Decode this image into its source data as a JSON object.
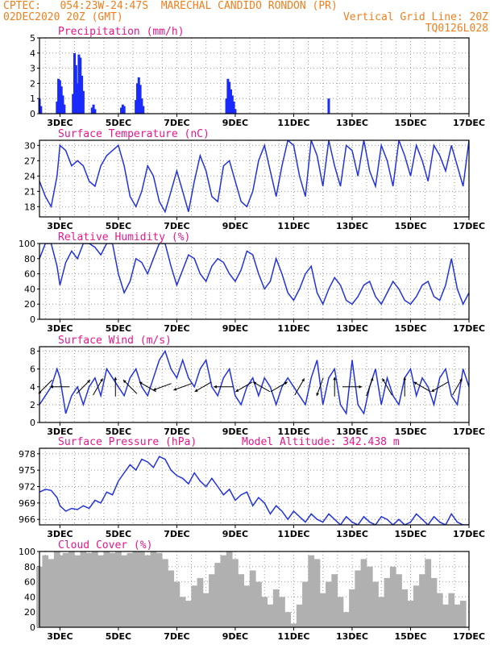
{
  "header": {
    "source": "CPTEC:",
    "coords": "054:23W-24:47S",
    "station": "MARECHAL CANDIDO RONDON (PR)",
    "date": "02DEC2020 20Z (GMT)",
    "grid_note": "Vertical Grid Line: 20Z",
    "code": "TQ0126L028"
  },
  "colors": {
    "header": "#f07f1e",
    "title": "#e8178a",
    "line": "#2233dd",
    "bar": "#1a2bff",
    "cloud": "#b0b0b0",
    "grid": "#9a9a9a"
  },
  "x_axis": {
    "ticks": [
      {
        "label": "3DEC",
        "day": 3
      },
      {
        "label": "5DEC",
        "day": 5
      },
      {
        "label": "7DEC",
        "day": 7
      },
      {
        "label": "9DEC",
        "day": 9
      },
      {
        "label": "11DEC",
        "day": 11
      },
      {
        "label": "13DEC",
        "day": 13
      },
      {
        "label": "15DEC",
        "day": 15
      },
      {
        "label": "17DEC",
        "day": 17
      }
    ],
    "range_days": [
      2.3,
      17.0
    ]
  },
  "chart_data": [
    {
      "type": "bar",
      "title": "Precipitation (mm/h)",
      "ylim": [
        0,
        5
      ],
      "yticks": [
        0,
        1,
        2,
        3,
        4,
        5
      ],
      "x_days": [
        2.3,
        2.35,
        2.9,
        2.95,
        3.0,
        3.05,
        3.1,
        3.15,
        3.45,
        3.5,
        3.55,
        3.6,
        3.65,
        3.7,
        3.75,
        3.8,
        4.1,
        4.15,
        4.2,
        5.1,
        5.15,
        5.2,
        5.6,
        5.65,
        5.7,
        5.75,
        5.8,
        5.85,
        8.7,
        8.75,
        8.8,
        8.85,
        8.9,
        8.95,
        9.0,
        12.2
      ],
      "values": [
        1.0,
        0.5,
        0.8,
        2.3,
        2.2,
        1.8,
        1.2,
        0.6,
        1.3,
        4.0,
        3.2,
        2.0,
        3.9,
        3.7,
        2.5,
        1.5,
        0.4,
        0.6,
        0.3,
        0.4,
        0.6,
        0.5,
        0.9,
        2.0,
        2.4,
        1.9,
        1.0,
        0.5,
        1.0,
        2.3,
        2.1,
        1.6,
        1.2,
        0.8,
        0.3,
        1.0
      ]
    },
    {
      "type": "line",
      "title": "Surface Temperature (nC)",
      "ylim": [
        16,
        31
      ],
      "yticks": [
        18,
        21,
        24,
        27,
        30
      ],
      "x": [
        2.3,
        2.5,
        2.7,
        2.9,
        3.0,
        3.2,
        3.4,
        3.6,
        3.8,
        4.0,
        4.2,
        4.4,
        4.6,
        4.8,
        5.0,
        5.2,
        5.4,
        5.6,
        5.8,
        6.0,
        6.2,
        6.4,
        6.6,
        6.8,
        7.0,
        7.2,
        7.4,
        7.6,
        7.8,
        8.0,
        8.2,
        8.4,
        8.6,
        8.8,
        9.0,
        9.2,
        9.4,
        9.6,
        9.8,
        10.0,
        10.2,
        10.4,
        10.6,
        10.8,
        11.0,
        11.2,
        11.4,
        11.6,
        11.8,
        12.0,
        12.2,
        12.4,
        12.6,
        12.8,
        13.0,
        13.2,
        13.4,
        13.6,
        13.8,
        14.0,
        14.2,
        14.4,
        14.6,
        14.8,
        15.0,
        15.2,
        15.4,
        15.6,
        15.8,
        16.0,
        16.2,
        16.4,
        16.6,
        16.8,
        17.0
      ],
      "values": [
        23,
        20,
        18,
        24,
        30,
        29,
        26,
        27,
        26,
        23,
        22,
        26,
        28,
        29,
        30,
        26,
        20,
        18,
        21,
        26,
        24,
        19,
        17,
        21,
        25,
        21,
        17,
        23,
        28,
        25,
        20,
        19,
        26,
        27,
        23,
        19,
        18,
        21,
        27,
        30,
        25,
        20,
        26,
        31,
        30,
        24,
        20,
        31,
        28,
        22,
        31,
        26,
        22,
        30,
        29,
        24,
        31,
        25,
        22,
        30,
        27,
        22,
        31,
        28,
        24,
        30,
        27,
        23,
        30,
        28,
        25,
        30,
        26,
        22,
        31
      ]
    },
    {
      "type": "line",
      "title": "Relative Humidity (%)",
      "ylim": [
        0,
        100
      ],
      "yticks": [
        0,
        20,
        40,
        60,
        80,
        100
      ],
      "x": [
        2.3,
        2.5,
        2.7,
        2.9,
        3.0,
        3.2,
        3.4,
        3.6,
        3.8,
        4.0,
        4.2,
        4.4,
        4.6,
        4.8,
        5.0,
        5.2,
        5.4,
        5.6,
        5.8,
        6.0,
        6.2,
        6.4,
        6.6,
        6.8,
        7.0,
        7.2,
        7.4,
        7.6,
        7.8,
        8.0,
        8.2,
        8.4,
        8.6,
        8.8,
        9.0,
        9.2,
        9.4,
        9.6,
        9.8,
        10.0,
        10.2,
        10.4,
        10.6,
        10.8,
        11.0,
        11.2,
        11.4,
        11.6,
        11.8,
        12.0,
        12.2,
        12.4,
        12.6,
        12.8,
        13.0,
        13.2,
        13.4,
        13.6,
        13.8,
        14.0,
        14.2,
        14.4,
        14.6,
        14.8,
        15.0,
        15.2,
        15.4,
        15.6,
        15.8,
        16.0,
        16.2,
        16.4,
        16.6,
        16.8,
        17.0
      ],
      "values": [
        80,
        100,
        100,
        70,
        45,
        75,
        90,
        80,
        100,
        100,
        95,
        85,
        100,
        100,
        60,
        35,
        50,
        80,
        75,
        60,
        80,
        100,
        100,
        70,
        45,
        65,
        85,
        80,
        60,
        50,
        70,
        80,
        75,
        60,
        50,
        65,
        90,
        85,
        60,
        40,
        50,
        80,
        60,
        35,
        25,
        40,
        60,
        70,
        35,
        20,
        40,
        55,
        45,
        25,
        20,
        30,
        45,
        50,
        30,
        20,
        35,
        50,
        40,
        25,
        20,
        30,
        45,
        50,
        30,
        25,
        45,
        80,
        40,
        20,
        35
      ]
    },
    {
      "type": "line",
      "title": "Surface Wind (m/s)",
      "ylim": [
        0,
        8.5
      ],
      "yticks": [
        0,
        2,
        4,
        6,
        8
      ],
      "x": [
        2.3,
        2.5,
        2.7,
        2.9,
        3.0,
        3.2,
        3.4,
        3.6,
        3.8,
        4.0,
        4.2,
        4.4,
        4.6,
        4.8,
        5.0,
        5.2,
        5.4,
        5.6,
        5.8,
        6.0,
        6.2,
        6.4,
        6.6,
        6.8,
        7.0,
        7.2,
        7.4,
        7.6,
        7.8,
        8.0,
        8.2,
        8.4,
        8.6,
        8.8,
        9.0,
        9.2,
        9.4,
        9.6,
        9.8,
        10.0,
        10.2,
        10.4,
        10.6,
        10.8,
        11.0,
        11.2,
        11.4,
        11.6,
        11.8,
        12.0,
        12.2,
        12.4,
        12.6,
        12.8,
        13.0,
        13.2,
        13.4,
        13.6,
        13.8,
        14.0,
        14.2,
        14.4,
        14.6,
        14.8,
        15.0,
        15.2,
        15.4,
        15.6,
        15.8,
        16.0,
        16.2,
        16.4,
        16.6,
        16.8,
        17.0
      ],
      "values": [
        2,
        3,
        4,
        6,
        5,
        1,
        3,
        4,
        2,
        4,
        5,
        3,
        6,
        5,
        4,
        3,
        5,
        6,
        4,
        3,
        5,
        7,
        8,
        6,
        5,
        7,
        5,
        4,
        6,
        7,
        4,
        3,
        5,
        6,
        3,
        2,
        4,
        5,
        3,
        5,
        4,
        2,
        4,
        5,
        4,
        3,
        2,
        5,
        7,
        2,
        5,
        6,
        2,
        1,
        7,
        2,
        1,
        4,
        6,
        2,
        5,
        3,
        2,
        5,
        6,
        3,
        5,
        4,
        2,
        5,
        6,
        3,
        2,
        6,
        4
      ],
      "arrows": [
        {
          "day": 2.5,
          "dir": 225
        },
        {
          "day": 3.0,
          "dir": 270
        },
        {
          "day": 3.8,
          "dir": 45
        },
        {
          "day": 4.3,
          "dir": 30
        },
        {
          "day": 4.9,
          "dir": 0
        },
        {
          "day": 5.4,
          "dir": 315
        },
        {
          "day": 6.0,
          "dir": 300
        },
        {
          "day": 6.5,
          "dir": 250
        },
        {
          "day": 7.2,
          "dir": 250
        },
        {
          "day": 7.9,
          "dir": 240
        },
        {
          "day": 8.6,
          "dir": 270
        },
        {
          "day": 9.3,
          "dir": 240
        },
        {
          "day": 9.9,
          "dir": 300
        },
        {
          "day": 10.5,
          "dir": 60
        },
        {
          "day": 11.2,
          "dir": 30
        },
        {
          "day": 11.9,
          "dir": 200
        },
        {
          "day": 12.4,
          "dir": 0
        },
        {
          "day": 13.0,
          "dir": 90
        },
        {
          "day": 13.6,
          "dir": 20
        },
        {
          "day": 14.2,
          "dir": 330
        },
        {
          "day": 14.8,
          "dir": 0
        },
        {
          "day": 15.4,
          "dir": 300
        },
        {
          "day": 16.0,
          "dir": 240
        },
        {
          "day": 16.6,
          "dir": 30
        }
      ]
    },
    {
      "type": "line",
      "title": "Surface Pressure (hPa)",
      "annotation": "Model Altitude: 342.438 m",
      "ylim": [
        965,
        979
      ],
      "yticks": [
        966,
        969,
        972,
        975,
        978
      ],
      "x": [
        2.3,
        2.5,
        2.7,
        2.9,
        3.0,
        3.2,
        3.4,
        3.6,
        3.8,
        4.0,
        4.2,
        4.4,
        4.6,
        4.8,
        5.0,
        5.2,
        5.4,
        5.6,
        5.8,
        6.0,
        6.2,
        6.4,
        6.6,
        6.8,
        7.0,
        7.2,
        7.4,
        7.6,
        7.8,
        8.0,
        8.2,
        8.4,
        8.6,
        8.8,
        9.0,
        9.2,
        9.4,
        9.6,
        9.8,
        10.0,
        10.2,
        10.4,
        10.6,
        10.8,
        11.0,
        11.2,
        11.4,
        11.6,
        11.8,
        12.0,
        12.2,
        12.4,
        12.6,
        12.8,
        13.0,
        13.2,
        13.4,
        13.6,
        13.8,
        14.0,
        14.2,
        14.4,
        14.6,
        14.8,
        15.0,
        15.2,
        15.4,
        15.6,
        15.8,
        16.0,
        16.2,
        16.4,
        16.6,
        16.8,
        17.0
      ],
      "values": [
        971.0,
        971.5,
        971.3,
        970.0,
        968.5,
        967.5,
        968.0,
        967.8,
        968.5,
        968.0,
        969.5,
        969.0,
        971.0,
        970.5,
        973.0,
        974.5,
        976.0,
        975.0,
        977.0,
        976.5,
        975.5,
        977.5,
        977.0,
        975.0,
        974.0,
        973.5,
        972.5,
        974.5,
        973.0,
        972.0,
        973.5,
        972.0,
        970.5,
        971.5,
        969.5,
        970.5,
        971.0,
        968.5,
        970.0,
        969.0,
        967.0,
        968.5,
        967.5,
        966.0,
        967.5,
        966.5,
        965.5,
        967.0,
        966.0,
        965.5,
        967.0,
        966.0,
        965.0,
        966.5,
        965.5,
        965.0,
        966.5,
        965.5,
        965.0,
        966.5,
        966.0,
        965.0,
        966.0,
        965.0,
        965.5,
        967.0,
        966.0,
        965.0,
        966.5,
        965.5,
        965.0,
        967.0,
        965.5,
        965.0,
        965.0
      ]
    },
    {
      "type": "bar",
      "title": "Cloud Cover (%)",
      "ylim": [
        0,
        100
      ],
      "yticks": [
        0,
        20,
        40,
        60,
        80,
        100
      ],
      "x": [
        2.3,
        2.5,
        2.7,
        2.9,
        3.0,
        3.2,
        3.4,
        3.6,
        3.8,
        4.0,
        4.2,
        4.4,
        4.6,
        4.8,
        5.0,
        5.2,
        5.4,
        5.6,
        5.8,
        6.0,
        6.2,
        6.4,
        6.6,
        6.8,
        7.0,
        7.2,
        7.4,
        7.6,
        7.8,
        8.0,
        8.2,
        8.4,
        8.6,
        8.8,
        9.0,
        9.2,
        9.4,
        9.6,
        9.8,
        10.0,
        10.2,
        10.4,
        10.6,
        10.8,
        11.0,
        11.2,
        11.4,
        11.6,
        11.8,
        12.0,
        12.2,
        12.4,
        12.6,
        12.8,
        13.0,
        13.2,
        13.4,
        13.6,
        13.8,
        14.0,
        14.2,
        14.4,
        14.6,
        14.8,
        15.0,
        15.2,
        15.4,
        15.6,
        15.8,
        16.0,
        16.2,
        16.4,
        16.6,
        16.8,
        17.0
      ],
      "values": [
        80,
        95,
        90,
        100,
        95,
        98,
        100,
        95,
        100,
        98,
        100,
        95,
        100,
        98,
        100,
        95,
        98,
        100,
        100,
        95,
        100,
        98,
        90,
        75,
        60,
        40,
        35,
        55,
        65,
        45,
        70,
        85,
        95,
        100,
        90,
        70,
        55,
        75,
        60,
        40,
        30,
        50,
        40,
        20,
        5,
        30,
        60,
        95,
        90,
        45,
        60,
        70,
        40,
        20,
        50,
        75,
        90,
        80,
        60,
        40,
        65,
        80,
        70,
        50,
        35,
        55,
        70,
        90,
        65,
        45,
        30,
        45,
        30,
        35,
        0
      ]
    }
  ]
}
